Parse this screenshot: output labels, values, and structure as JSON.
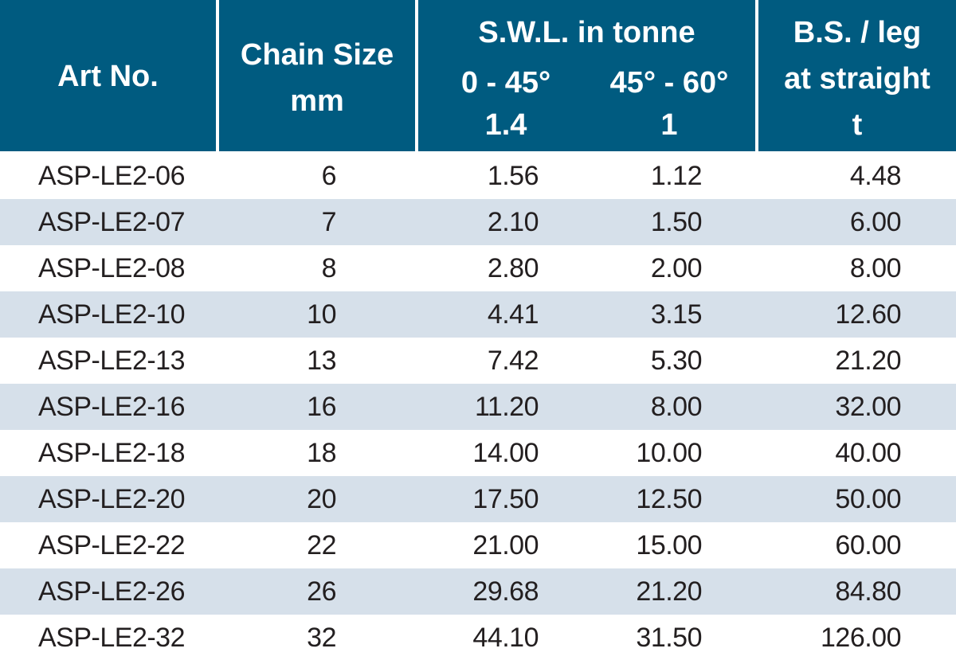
{
  "header": {
    "art_no": "Art No.",
    "chain_size_line1": "Chain Size",
    "chain_size_line2": "mm",
    "swl_title": "S.W.L. in tonne",
    "swl_angle1": "0 - 45°",
    "swl_angle2": "45° - 60°",
    "swl_factor1": "1.4",
    "swl_factor2": "1",
    "bs_line1": "B.S. / leg",
    "bs_line2": "at straight",
    "bs_line3": "t"
  },
  "colors": {
    "header_bg": "#005b80",
    "alt_row_bg": "#d6e0ea",
    "text": "#231f20"
  },
  "rows": [
    {
      "art": "ASP-LE2-06",
      "chain": "6",
      "swl1": "1.56",
      "swl2": "1.12",
      "bs": "4.48"
    },
    {
      "art": "ASP-LE2-07",
      "chain": "7",
      "swl1": "2.10",
      "swl2": "1.50",
      "bs": "6.00"
    },
    {
      "art": "ASP-LE2-08",
      "chain": "8",
      "swl1": "2.80",
      "swl2": "2.00",
      "bs": "8.00"
    },
    {
      "art": "ASP-LE2-10",
      "chain": "10",
      "swl1": "4.41",
      "swl2": "3.15",
      "bs": "12.60"
    },
    {
      "art": "ASP-LE2-13",
      "chain": "13",
      "swl1": "7.42",
      "swl2": "5.30",
      "bs": "21.20"
    },
    {
      "art": "ASP-LE2-16",
      "chain": "16",
      "swl1": "11.20",
      "swl2": "8.00",
      "bs": "32.00"
    },
    {
      "art": "ASP-LE2-18",
      "chain": "18",
      "swl1": "14.00",
      "swl2": "10.00",
      "bs": "40.00"
    },
    {
      "art": "ASP-LE2-20",
      "chain": "20",
      "swl1": "17.50",
      "swl2": "12.50",
      "bs": "50.00"
    },
    {
      "art": "ASP-LE2-22",
      "chain": "22",
      "swl1": "21.00",
      "swl2": "15.00",
      "bs": "60.00"
    },
    {
      "art": "ASP-LE2-26",
      "chain": "26",
      "swl1": "29.68",
      "swl2": "21.20",
      "bs": "84.80"
    },
    {
      "art": "ASP-LE2-32",
      "chain": "32",
      "swl1": "44.10",
      "swl2": "31.50",
      "bs": "126.00"
    }
  ]
}
